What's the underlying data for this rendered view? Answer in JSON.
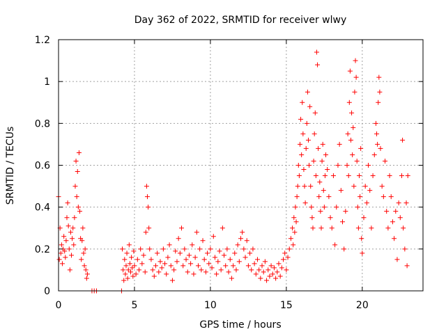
{
  "chart_data": {
    "type": "scatter",
    "title": "Day 362 of 2022, SRMTID for receiver wlwy",
    "xlabel": "GPS time / hours",
    "ylabel": "SRMTID / TECUs",
    "xlim": [
      0,
      24
    ],
    "ylim": [
      0,
      1.2
    ],
    "xticks": [
      0,
      5,
      10,
      15,
      20
    ],
    "yticks": [
      0,
      0.2,
      0.4,
      0.6,
      0.8,
      1.0,
      1.2
    ],
    "xtick_labels": [
      "0",
      "5",
      "10",
      "15",
      "20"
    ],
    "ytick_labels": [
      "0",
      "0.2",
      "0.4",
      "0.6",
      "0.8",
      "1",
      "1.2"
    ],
    "grid": true,
    "legend": "none",
    "colors": {
      "series": "#ff0000",
      "grid": "#a0a0a0",
      "axis": "#000000"
    },
    "marker": "plus",
    "series": [
      {
        "name": "SRMTID",
        "points": [
          [
            0.0,
            0.45
          ],
          [
            0.05,
            0.15
          ],
          [
            0.1,
            0.3
          ],
          [
            0.15,
            0.18
          ],
          [
            0.2,
            0.22
          ],
          [
            0.25,
            0.13
          ],
          [
            0.3,
            0.2
          ],
          [
            0.35,
            0.26
          ],
          [
            0.4,
            0.19
          ],
          [
            0.45,
            0.16
          ],
          [
            0.5,
            0.24
          ],
          [
            0.55,
            0.35
          ],
          [
            0.6,
            0.42
          ],
          [
            0.65,
            0.31
          ],
          [
            0.7,
            0.2
          ],
          [
            0.75,
            0.1
          ],
          [
            0.8,
            0.28
          ],
          [
            0.85,
            0.17
          ],
          [
            0.9,
            0.25
          ],
          [
            0.95,
            0.3
          ],
          [
            1.0,
            0.22
          ],
          [
            1.05,
            0.35
          ],
          [
            1.1,
            0.5
          ],
          [
            1.15,
            0.62
          ],
          [
            1.2,
            0.45
          ],
          [
            1.25,
            0.57
          ],
          [
            1.3,
            0.4
          ],
          [
            1.35,
            0.66
          ],
          [
            1.4,
            0.38
          ],
          [
            1.45,
            0.25
          ],
          [
            1.5,
            0.15
          ],
          [
            1.55,
            0.24
          ],
          [
            1.6,
            0.3
          ],
          [
            1.65,
            0.18
          ],
          [
            1.7,
            0.12
          ],
          [
            1.75,
            0.2
          ],
          [
            1.8,
            0.1
          ],
          [
            1.85,
            0.06
          ],
          [
            1.9,
            0.08
          ],
          [
            2.2,
            0.0
          ],
          [
            2.35,
            0.0
          ],
          [
            2.5,
            0.0
          ],
          [
            4.15,
            0.0
          ],
          [
            4.2,
            0.2
          ],
          [
            4.25,
            0.1
          ],
          [
            4.3,
            0.05
          ],
          [
            4.35,
            0.15
          ],
          [
            4.4,
            0.08
          ],
          [
            4.45,
            0.12
          ],
          [
            4.5,
            0.18
          ],
          [
            4.55,
            0.06
          ],
          [
            4.6,
            0.1
          ],
          [
            4.65,
            0.22
          ],
          [
            4.7,
            0.13
          ],
          [
            4.75,
            0.09
          ],
          [
            4.8,
            0.16
          ],
          [
            4.85,
            0.11
          ],
          [
            4.9,
            0.07
          ],
          [
            4.95,
            0.19
          ],
          [
            5.0,
            0.12
          ],
          [
            5.1,
            0.08
          ],
          [
            5.2,
            0.15
          ],
          [
            5.3,
            0.1
          ],
          [
            5.4,
            0.2
          ],
          [
            5.5,
            0.13
          ],
          [
            5.6,
            0.17
          ],
          [
            5.7,
            0.09
          ],
          [
            5.75,
            0.28
          ],
          [
            5.8,
            0.5
          ],
          [
            5.85,
            0.45
          ],
          [
            5.9,
            0.4
          ],
          [
            5.95,
            0.3
          ],
          [
            6.0,
            0.2
          ],
          [
            6.1,
            0.15
          ],
          [
            6.2,
            0.1
          ],
          [
            6.3,
            0.07
          ],
          [
            6.4,
            0.12
          ],
          [
            6.5,
            0.18
          ],
          [
            6.6,
            0.09
          ],
          [
            6.7,
            0.14
          ],
          [
            6.8,
            0.11
          ],
          [
            6.9,
            0.2
          ],
          [
            7.0,
            0.13
          ],
          [
            7.1,
            0.08
          ],
          [
            7.2,
            0.16
          ],
          [
            7.3,
            0.22
          ],
          [
            7.4,
            0.12
          ],
          [
            7.5,
            0.05
          ],
          [
            7.6,
            0.1
          ],
          [
            7.7,
            0.19
          ],
          [
            7.8,
            0.14
          ],
          [
            7.9,
            0.25
          ],
          [
            8.0,
            0.18
          ],
          [
            8.1,
            0.3
          ],
          [
            8.2,
            0.12
          ],
          [
            8.3,
            0.2
          ],
          [
            8.4,
            0.15
          ],
          [
            8.5,
            0.09
          ],
          [
            8.6,
            0.17
          ],
          [
            8.7,
            0.13
          ],
          [
            8.8,
            0.22
          ],
          [
            8.9,
            0.08
          ],
          [
            9.0,
            0.16
          ],
          [
            9.1,
            0.28
          ],
          [
            9.2,
            0.12
          ],
          [
            9.3,
            0.2
          ],
          [
            9.4,
            0.1
          ],
          [
            9.5,
            0.24
          ],
          [
            9.6,
            0.15
          ],
          [
            9.7,
            0.09
          ],
          [
            9.8,
            0.18
          ],
          [
            9.9,
            0.13
          ],
          [
            10.0,
            0.2
          ],
          [
            10.1,
            0.11
          ],
          [
            10.2,
            0.26
          ],
          [
            10.3,
            0.16
          ],
          [
            10.4,
            0.08
          ],
          [
            10.5,
            0.14
          ],
          [
            10.6,
            0.19
          ],
          [
            10.7,
            0.1
          ],
          [
            10.8,
            0.3
          ],
          [
            10.9,
            0.17
          ],
          [
            11.0,
            0.12
          ],
          [
            11.1,
            0.2
          ],
          [
            11.2,
            0.09
          ],
          [
            11.3,
            0.15
          ],
          [
            11.4,
            0.06
          ],
          [
            11.5,
            0.12
          ],
          [
            11.6,
            0.18
          ],
          [
            11.7,
            0.1
          ],
          [
            11.8,
            0.22
          ],
          [
            11.9,
            0.14
          ],
          [
            12.0,
            0.25
          ],
          [
            12.1,
            0.28
          ],
          [
            12.2,
            0.2
          ],
          [
            12.3,
            0.16
          ],
          [
            12.4,
            0.24
          ],
          [
            12.5,
            0.12
          ],
          [
            12.6,
            0.18
          ],
          [
            12.7,
            0.1
          ],
          [
            12.8,
            0.2
          ],
          [
            12.9,
            0.13
          ],
          [
            13.0,
            0.08
          ],
          [
            13.1,
            0.15
          ],
          [
            13.2,
            0.1
          ],
          [
            13.3,
            0.06
          ],
          [
            13.4,
            0.12
          ],
          [
            13.5,
            0.09
          ],
          [
            13.6,
            0.14
          ],
          [
            13.7,
            0.05
          ],
          [
            13.8,
            0.1
          ],
          [
            13.9,
            0.07
          ],
          [
            14.0,
            0.12
          ],
          [
            14.1,
            0.08
          ],
          [
            14.2,
            0.11
          ],
          [
            14.3,
            0.06
          ],
          [
            14.4,
            0.09
          ],
          [
            14.5,
            0.13
          ],
          [
            14.6,
            0.07
          ],
          [
            14.7,
            0.11
          ],
          [
            14.8,
            0.15
          ],
          [
            14.9,
            0.18
          ],
          [
            15.0,
            0.1
          ],
          [
            15.1,
            0.16
          ],
          [
            15.2,
            0.2
          ],
          [
            15.3,
            0.25
          ],
          [
            15.4,
            0.3
          ],
          [
            15.45,
            0.22
          ],
          [
            15.5,
            0.35
          ],
          [
            15.55,
            0.28
          ],
          [
            15.6,
            0.4
          ],
          [
            15.65,
            0.33
          ],
          [
            15.7,
            0.45
          ],
          [
            15.75,
            0.5
          ],
          [
            15.8,
            0.6
          ],
          [
            15.85,
            0.55
          ],
          [
            15.9,
            0.7
          ],
          [
            15.95,
            0.82
          ],
          [
            16.0,
            0.65
          ],
          [
            16.05,
            0.9
          ],
          [
            16.1,
            0.75
          ],
          [
            16.15,
            0.58
          ],
          [
            16.2,
            0.5
          ],
          [
            16.25,
            0.42
          ],
          [
            16.3,
            0.68
          ],
          [
            16.35,
            0.8
          ],
          [
            16.4,
            0.95
          ],
          [
            16.45,
            0.72
          ],
          [
            16.5,
            0.6
          ],
          [
            16.55,
            0.88
          ],
          [
            16.6,
            0.5
          ],
          [
            16.65,
            0.4
          ],
          [
            16.7,
            0.35
          ],
          [
            16.75,
            0.3
          ],
          [
            16.8,
            0.62
          ],
          [
            16.85,
            0.75
          ],
          [
            16.9,
            0.85
          ],
          [
            16.95,
            0.55
          ],
          [
            17.0,
            1.14
          ],
          [
            17.05,
            1.08
          ],
          [
            17.1,
            0.68
          ],
          [
            17.15,
            0.45
          ],
          [
            17.2,
            0.52
          ],
          [
            17.25,
            0.38
          ],
          [
            17.3,
            0.3
          ],
          [
            17.35,
            0.62
          ],
          [
            17.4,
            0.7
          ],
          [
            17.45,
            0.48
          ],
          [
            17.5,
            0.4
          ],
          [
            17.55,
            0.55
          ],
          [
            17.6,
            0.65
          ],
          [
            17.7,
            0.58
          ],
          [
            17.8,
            0.45
          ],
          [
            17.9,
            0.35
          ],
          [
            18.0,
            0.3
          ],
          [
            18.1,
            0.55
          ],
          [
            18.2,
            0.22
          ],
          [
            18.3,
            0.4
          ],
          [
            18.4,
            0.6
          ],
          [
            18.5,
            0.7
          ],
          [
            18.6,
            0.48
          ],
          [
            18.7,
            0.33
          ],
          [
            18.8,
            0.2
          ],
          [
            18.9,
            0.38
          ],
          [
            19.0,
            0.6
          ],
          [
            19.05,
            0.75
          ],
          [
            19.1,
            0.55
          ],
          [
            19.15,
            0.9
          ],
          [
            19.2,
            1.05
          ],
          [
            19.25,
            0.72
          ],
          [
            19.3,
            0.85
          ],
          [
            19.35,
            0.65
          ],
          [
            19.4,
            0.78
          ],
          [
            19.45,
            0.5
          ],
          [
            19.5,
            0.95
          ],
          [
            19.55,
            1.1
          ],
          [
            19.6,
            1.02
          ],
          [
            19.65,
            0.62
          ],
          [
            19.7,
            0.4
          ],
          [
            19.75,
            0.3
          ],
          [
            19.8,
            0.55
          ],
          [
            19.85,
            0.45
          ],
          [
            19.9,
            0.68
          ],
          [
            19.95,
            0.25
          ],
          [
            20.0,
            0.18
          ],
          [
            20.1,
            0.35
          ],
          [
            20.2,
            0.5
          ],
          [
            20.3,
            0.42
          ],
          [
            20.4,
            0.6
          ],
          [
            20.5,
            0.48
          ],
          [
            20.6,
            0.3
          ],
          [
            20.7,
            0.55
          ],
          [
            20.8,
            0.65
          ],
          [
            20.9,
            0.8
          ],
          [
            20.95,
            0.75
          ],
          [
            21.0,
            0.7
          ],
          [
            21.05,
            0.9
          ],
          [
            21.1,
            1.02
          ],
          [
            21.15,
            0.95
          ],
          [
            21.2,
            0.68
          ],
          [
            21.3,
            0.5
          ],
          [
            21.4,
            0.45
          ],
          [
            21.5,
            0.62
          ],
          [
            21.6,
            0.38
          ],
          [
            21.7,
            0.3
          ],
          [
            21.8,
            0.55
          ],
          [
            21.9,
            0.45
          ],
          [
            22.0,
            0.33
          ],
          [
            22.1,
            0.25
          ],
          [
            22.2,
            0.38
          ],
          [
            22.3,
            0.15
          ],
          [
            22.4,
            0.42
          ],
          [
            22.5,
            0.35
          ],
          [
            22.6,
            0.55
          ],
          [
            22.65,
            0.72
          ],
          [
            22.7,
            0.3
          ],
          [
            22.8,
            0.2
          ],
          [
            22.9,
            0.42
          ],
          [
            22.95,
            0.12
          ],
          [
            23.0,
            0.55
          ]
        ]
      }
    ]
  }
}
